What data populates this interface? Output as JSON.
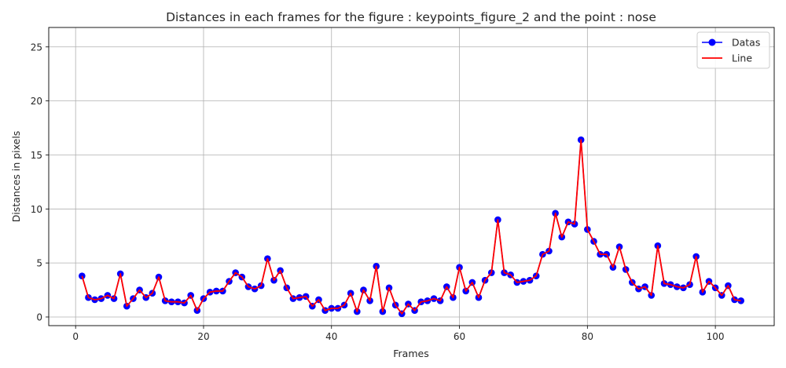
{
  "chart_data": {
    "type": "line",
    "title": "Distances in each frames for the figure : keypoints_figure_2 and the point : nose",
    "xlabel": "Frames",
    "ylabel": "Distances in pixels",
    "xlim": [
      -4.2,
      109.2
    ],
    "ylim": [
      -0.8,
      26.8
    ],
    "xticks": [
      0,
      20,
      40,
      60,
      80,
      100
    ],
    "yticks": [
      0,
      5,
      10,
      15,
      20,
      25
    ],
    "grid": true,
    "legend_position": "top-right",
    "colors": {
      "datas": "#0000ff",
      "line": "#ff0000"
    },
    "x": [
      1,
      2,
      3,
      4,
      5,
      6,
      7,
      8,
      9,
      10,
      11,
      12,
      13,
      14,
      15,
      16,
      17,
      18,
      19,
      20,
      21,
      22,
      23,
      24,
      25,
      26,
      27,
      28,
      29,
      30,
      31,
      32,
      33,
      34,
      35,
      36,
      37,
      38,
      39,
      40,
      41,
      42,
      43,
      44,
      45,
      46,
      47,
      48,
      49,
      50,
      51,
      52,
      53,
      54,
      55,
      56,
      57,
      58,
      59,
      60,
      61,
      62,
      63,
      64,
      65,
      66,
      67,
      68,
      69,
      70,
      71,
      72,
      73,
      74,
      75,
      76,
      77,
      78,
      79,
      80,
      81,
      82,
      83,
      84,
      85,
      86,
      87,
      88,
      89,
      90,
      91,
      92,
      93,
      94,
      95,
      96,
      97,
      98,
      99,
      100,
      101,
      102,
      103,
      104
    ],
    "series": [
      {
        "name": "Datas",
        "values": [
          3.8,
          1.8,
          1.6,
          1.7,
          2.0,
          1.7,
          4.0,
          1.0,
          1.7,
          2.5,
          1.8,
          2.2,
          3.7,
          1.5,
          1.4,
          1.4,
          1.3,
          2.0,
          0.6,
          1.7,
          2.3,
          2.4,
          2.4,
          3.3,
          4.1,
          3.7,
          2.8,
          2.6,
          2.9,
          5.4,
          3.4,
          4.3,
          2.7,
          1.7,
          1.8,
          1.9,
          1.0,
          1.6,
          0.6,
          0.8,
          0.8,
          1.1,
          2.2,
          0.5,
          2.5,
          1.5,
          4.7,
          0.5,
          2.7,
          1.1,
          0.3,
          1.2,
          0.6,
          1.4,
          1.5,
          1.7,
          1.5,
          2.8,
          1.8,
          4.6,
          2.4,
          3.2,
          1.8,
          3.4,
          4.1,
          9.0,
          4.1,
          3.9,
          3.2,
          3.3,
          3.4,
          3.8,
          5.8,
          6.1,
          9.6,
          7.4,
          8.8,
          8.6,
          16.4,
          8.1,
          7.0,
          5.8,
          5.8,
          4.6,
          6.5,
          4.4,
          3.2,
          2.6,
          2.8,
          2.0,
          6.6,
          3.1,
          3.0,
          2.8,
          2.7,
          3.0,
          5.6,
          2.3,
          3.3,
          2.7,
          2.0,
          2.9,
          1.6,
          1.5
        ]
      },
      {
        "name": "Line",
        "values": [
          3.8,
          1.8,
          1.6,
          1.7,
          2.0,
          1.7,
          4.0,
          1.0,
          1.7,
          2.5,
          1.8,
          2.2,
          3.7,
          1.5,
          1.4,
          1.4,
          1.3,
          2.0,
          0.6,
          1.7,
          2.3,
          2.4,
          2.4,
          3.3,
          4.1,
          3.7,
          2.8,
          2.6,
          2.9,
          5.4,
          3.4,
          4.3,
          2.7,
          1.7,
          1.8,
          1.9,
          1.0,
          1.6,
          0.6,
          0.8,
          0.8,
          1.1,
          2.2,
          0.5,
          2.5,
          1.5,
          4.7,
          0.5,
          2.7,
          1.1,
          0.3,
          1.2,
          0.6,
          1.4,
          1.5,
          1.7,
          1.5,
          2.8,
          1.8,
          4.6,
          2.4,
          3.2,
          1.8,
          3.4,
          4.1,
          9.0,
          4.1,
          3.9,
          3.2,
          3.3,
          3.4,
          3.8,
          5.8,
          6.1,
          9.6,
          7.4,
          8.8,
          8.6,
          16.4,
          8.1,
          7.0,
          5.8,
          5.8,
          4.6,
          6.5,
          4.4,
          3.2,
          2.6,
          2.8,
          2.0,
          6.6,
          3.1,
          3.0,
          2.8,
          2.7,
          3.0,
          5.6,
          2.3,
          3.3,
          2.7,
          2.0,
          2.9,
          1.6,
          1.5
        ]
      }
    ]
  }
}
